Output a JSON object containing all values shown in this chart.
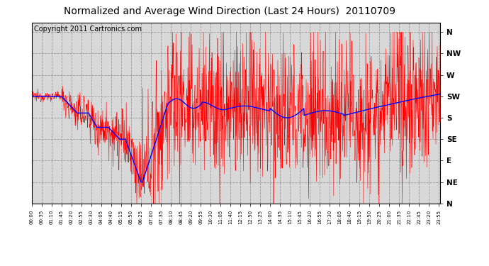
{
  "title": "Normalized and Average Wind Direction (Last 24 Hours)  20110709",
  "copyright": "Copyright 2011 Cartronics.com",
  "ytick_labels": [
    "N",
    "NW",
    "W",
    "SW",
    "S",
    "SE",
    "E",
    "NE",
    "N"
  ],
  "ytick_values": [
    360,
    315,
    270,
    225,
    180,
    135,
    90,
    45,
    0
  ],
  "ylim": [
    0,
    380
  ],
  "background_color": "#ffffff",
  "plot_bg_color": "#d8d8d8",
  "grid_color": "#999999",
  "red_color": "#ff0000",
  "blue_color": "#0000ff",
  "title_fontsize": 10,
  "copyright_fontsize": 7,
  "tick_interval_min": 35,
  "n_points": 1440
}
